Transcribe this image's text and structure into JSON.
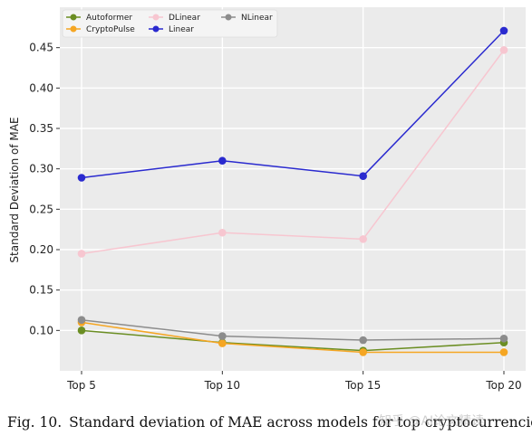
{
  "chart_data": {
    "type": "line",
    "title": "",
    "xlabel": "",
    "ylabel": "Standard Deviation of MAE",
    "categories": [
      "Top 5",
      "Top 10",
      "Top 15",
      "Top 20"
    ],
    "ylim": [
      0.05,
      0.5
    ],
    "yticks": [
      "0.10",
      "0.15",
      "0.20",
      "0.25",
      "0.30",
      "0.35",
      "0.40",
      "0.45"
    ],
    "grid": true,
    "legend_position": "top-left",
    "series": [
      {
        "name": "Autoformer",
        "color": "#6b8e23",
        "values": [
          0.1,
          0.085,
          0.075,
          0.085
        ]
      },
      {
        "name": "CryptoPulse",
        "color": "#f5a623",
        "values": [
          0.11,
          0.084,
          0.073,
          0.073
        ]
      },
      {
        "name": "DLinear",
        "color": "#f7c6d0",
        "values": [
          0.195,
          0.221,
          0.213,
          0.447
        ]
      },
      {
        "name": "Linear",
        "color": "#2a2acf",
        "values": [
          0.289,
          0.31,
          0.291,
          0.471
        ]
      },
      {
        "name": "NLinear",
        "color": "#8c8c8c",
        "values": [
          0.113,
          0.093,
          0.088,
          0.09
        ]
      }
    ]
  },
  "caption": {
    "label": "Fig. 10.",
    "text": "Standard deviation of MAE across models for top cryptocurrencies."
  },
  "watermark": "知乎 @AI论文精读"
}
